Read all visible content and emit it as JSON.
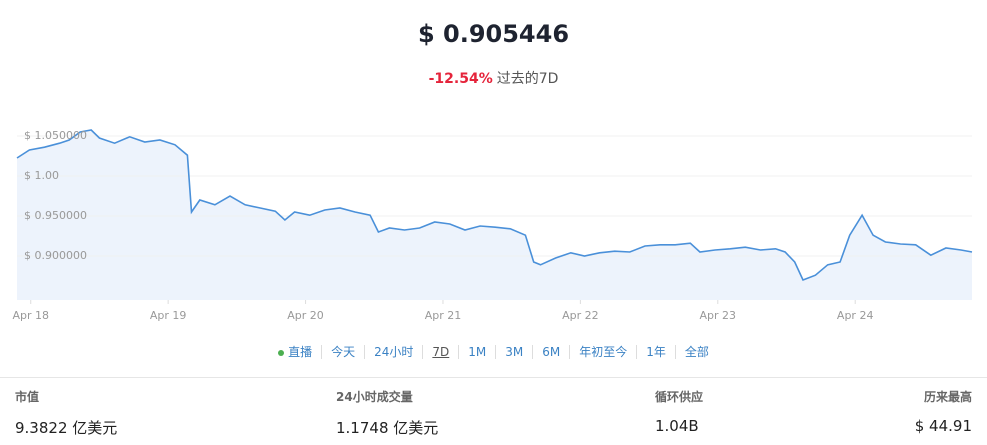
{
  "header": {
    "price": "$ 0.905446",
    "change": "-12.54%",
    "period": "过去的7D"
  },
  "chart_data": {
    "type": "area",
    "x": [
      -0.1,
      -0.01,
      0.1,
      0.21,
      0.28,
      0.36,
      0.44,
      0.5,
      0.61,
      0.72,
      0.83,
      0.94,
      1.05,
      1.14,
      1.17,
      1.23,
      1.34,
      1.45,
      1.56,
      1.67,
      1.78,
      1.85,
      1.92,
      2.03,
      2.14,
      2.25,
      2.36,
      2.47,
      2.53,
      2.61,
      2.72,
      2.83,
      2.94,
      3.05,
      3.16,
      3.27,
      3.38,
      3.49,
      3.6,
      3.66,
      3.71,
      3.82,
      3.93,
      4.03,
      4.14,
      4.25,
      4.36,
      4.47,
      4.58,
      4.69,
      4.8,
      4.87,
      4.98,
      5.09,
      5.2,
      5.31,
      5.42,
      5.49,
      5.56,
      5.62,
      5.71,
      5.8,
      5.89,
      5.96,
      6.05,
      6.13,
      6.22,
      6.33,
      6.44,
      6.55,
      6.66,
      6.77,
      6.85
    ],
    "values": [
      1.0225,
      1.0325,
      1.036,
      1.041,
      1.045,
      1.055,
      1.0575,
      1.0475,
      1.041,
      1.049,
      1.0425,
      1.045,
      1.039,
      1.026,
      0.955,
      0.97,
      0.964,
      0.975,
      0.964,
      0.96,
      0.956,
      0.945,
      0.955,
      0.951,
      0.9575,
      0.96,
      0.955,
      0.951,
      0.93,
      0.935,
      0.9325,
      0.935,
      0.9425,
      0.94,
      0.9325,
      0.9375,
      0.936,
      0.934,
      0.926,
      0.8925,
      0.889,
      0.8975,
      0.904,
      0.9,
      0.904,
      0.906,
      0.905,
      0.9125,
      0.914,
      0.914,
      0.916,
      0.905,
      0.9075,
      0.909,
      0.911,
      0.9075,
      0.909,
      0.905,
      0.8925,
      0.87,
      0.876,
      0.889,
      0.8925,
      0.926,
      0.951,
      0.926,
      0.9175,
      0.915,
      0.914,
      0.901,
      0.91,
      0.9075,
      0.905
    ],
    "color": "#4a90d9",
    "xlim": [
      -0.1,
      6.85
    ],
    "xticks": [
      {
        "value": 0,
        "label": "Apr 18"
      },
      {
        "value": 1,
        "label": "Apr 19"
      },
      {
        "value": 2,
        "label": "Apr 20"
      },
      {
        "value": 3,
        "label": "Apr 21"
      },
      {
        "value": 4,
        "label": "Apr 22"
      },
      {
        "value": 5,
        "label": "Apr 23"
      },
      {
        "value": 6,
        "label": "Apr 24"
      }
    ],
    "ylim": [
      0.845,
      1.06
    ],
    "yticks": [
      {
        "value": 1.05,
        "label": "$ 1.050000"
      },
      {
        "value": 1.0,
        "label": "$ 1.00"
      },
      {
        "value": 0.95,
        "label": "$ 0.950000"
      },
      {
        "value": 0.9,
        "label": "$ 0.900000"
      }
    ],
    "grid": true
  },
  "ranges": [
    "直播",
    "今天",
    "24小时",
    "7D",
    "1M",
    "3M",
    "6M",
    "年初至今",
    "1年",
    "全部"
  ],
  "stats": [
    {
      "label": "市值",
      "value": "9.3822 亿美元"
    },
    {
      "label": "24小时成交量",
      "value": "1.1748 亿美元"
    },
    {
      "label": "循环供应",
      "value": "1.04B"
    },
    {
      "label": "历来最高",
      "value": "$ 44.91"
    }
  ]
}
